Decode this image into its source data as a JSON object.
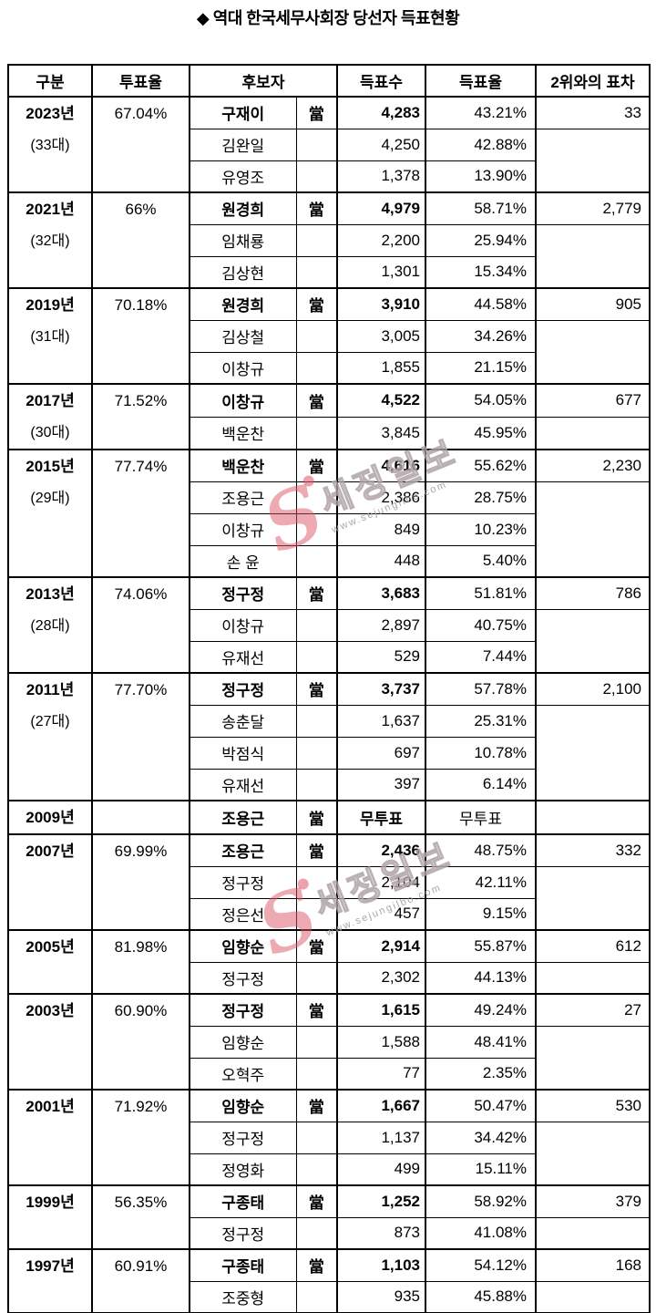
{
  "title": "◆ 역대 한국세무사회장 당선자 득표현황",
  "watermark": {
    "logo_letter": "S",
    "brand": "세정일보",
    "url": "www.sejungilbo.com",
    "accent_color": "#de5566"
  },
  "table": {
    "headers": [
      "구분",
      "투표율",
      "후보자",
      "득표수",
      "득표율",
      "2위와의 표차"
    ],
    "elected_mark": "當",
    "groups": [
      {
        "year": "2023년",
        "term": "(33대)",
        "turnout": "67.04%",
        "margin": "33",
        "candidates": [
          {
            "name": "구재이",
            "elected": true,
            "votes": "4,283",
            "pct": "43.21%"
          },
          {
            "name": "김완일",
            "elected": false,
            "votes": "4,250",
            "pct": "42.88%"
          },
          {
            "name": "유영조",
            "elected": false,
            "votes": "1,378",
            "pct": "13.90%"
          }
        ]
      },
      {
        "year": "2021년",
        "term": "(32대)",
        "turnout": "66%",
        "margin": "2,779",
        "candidates": [
          {
            "name": "원경희",
            "elected": true,
            "votes": "4,979",
            "pct": "58.71%"
          },
          {
            "name": "임채룡",
            "elected": false,
            "votes": "2,200",
            "pct": "25.94%"
          },
          {
            "name": "김상현",
            "elected": false,
            "votes": "1,301",
            "pct": "15.34%"
          }
        ]
      },
      {
        "year": "2019년",
        "term": "(31대)",
        "turnout": "70.18%",
        "margin": "905",
        "candidates": [
          {
            "name": "원경희",
            "elected": true,
            "votes": "3,910",
            "pct": "44.58%"
          },
          {
            "name": "김상철",
            "elected": false,
            "votes": "3,005",
            "pct": "34.26%"
          },
          {
            "name": "이창규",
            "elected": false,
            "votes": "1,855",
            "pct": "21.15%"
          }
        ]
      },
      {
        "year": "2017년",
        "term": "(30대)",
        "turnout": "71.52%",
        "margin": "677",
        "candidates": [
          {
            "name": "이창규",
            "elected": true,
            "votes": "4,522",
            "pct": "54.05%"
          },
          {
            "name": "백운찬",
            "elected": false,
            "votes": "3,845",
            "pct": "45.95%"
          }
        ]
      },
      {
        "year": "2015년",
        "term": "(29대)",
        "turnout": "77.74%",
        "margin": "2,230",
        "candidates": [
          {
            "name": "백운찬",
            "elected": true,
            "votes": "4,616",
            "pct": "55.62%"
          },
          {
            "name": "조용근",
            "elected": false,
            "votes": "2,386",
            "pct": "28.75%"
          },
          {
            "name": "이창규",
            "elected": false,
            "votes": "849",
            "pct": "10.23%"
          },
          {
            "name": "손 윤",
            "elected": false,
            "votes": "448",
            "pct": "5.40%"
          }
        ]
      },
      {
        "year": "2013년",
        "term": "(28대)",
        "turnout": "74.06%",
        "margin": "786",
        "candidates": [
          {
            "name": "정구정",
            "elected": true,
            "votes": "3,683",
            "pct": "51.81%"
          },
          {
            "name": "이창규",
            "elected": false,
            "votes": "2,897",
            "pct": "40.75%"
          },
          {
            "name": "유재선",
            "elected": false,
            "votes": "529",
            "pct": "7.44%"
          }
        ]
      },
      {
        "year": "2011년",
        "term": "(27대)",
        "turnout": "77.70%",
        "margin": "2,100",
        "candidates": [
          {
            "name": "정구정",
            "elected": true,
            "votes": "3,737",
            "pct": "57.78%"
          },
          {
            "name": "송춘달",
            "elected": false,
            "votes": "1,637",
            "pct": "25.31%"
          },
          {
            "name": "박점식",
            "elected": false,
            "votes": "697",
            "pct": "10.78%"
          },
          {
            "name": "유재선",
            "elected": false,
            "votes": "397",
            "pct": "6.14%"
          }
        ]
      },
      {
        "year": "2009년",
        "term": "",
        "turnout": "",
        "margin": "",
        "candidates": [
          {
            "name": "조용근",
            "elected": true,
            "votes": "무투표",
            "pct": "무투표",
            "uncontested": true
          }
        ]
      },
      {
        "year": "2007년",
        "term": "",
        "turnout": "69.99%",
        "margin": "332",
        "candidates": [
          {
            "name": "조용근",
            "elected": true,
            "votes": "2,436",
            "pct": "48.75%"
          },
          {
            "name": "정구정",
            "elected": false,
            "votes": "2,104",
            "pct": "42.11%"
          },
          {
            "name": "정은선",
            "elected": false,
            "votes": "457",
            "pct": "9.15%"
          }
        ]
      },
      {
        "year": "2005년",
        "term": "",
        "turnout": "81.98%",
        "margin": "612",
        "candidates": [
          {
            "name": "임향순",
            "elected": true,
            "votes": "2,914",
            "pct": "55.87%"
          },
          {
            "name": "정구정",
            "elected": false,
            "votes": "2,302",
            "pct": "44.13%"
          }
        ]
      },
      {
        "year": "2003년",
        "term": "",
        "turnout": "60.90%",
        "margin": "27",
        "candidates": [
          {
            "name": "정구정",
            "elected": true,
            "votes": "1,615",
            "pct": "49.24%"
          },
          {
            "name": "임향순",
            "elected": false,
            "votes": "1,588",
            "pct": "48.41%"
          },
          {
            "name": "오혁주",
            "elected": false,
            "votes": "77",
            "pct": "2.35%"
          }
        ]
      },
      {
        "year": "2001년",
        "term": "",
        "turnout": "71.92%",
        "margin": "530",
        "candidates": [
          {
            "name": "임향순",
            "elected": true,
            "votes": "1,667",
            "pct": "50.47%"
          },
          {
            "name": "정구정",
            "elected": false,
            "votes": "1,137",
            "pct": "34.42%"
          },
          {
            "name": "정영화",
            "elected": false,
            "votes": "499",
            "pct": "15.11%"
          }
        ]
      },
      {
        "year": "1999년",
        "term": "",
        "turnout": "56.35%",
        "margin": "379",
        "candidates": [
          {
            "name": "구종태",
            "elected": true,
            "votes": "1,252",
            "pct": "58.92%"
          },
          {
            "name": "정구정",
            "elected": false,
            "votes": "873",
            "pct": "41.08%"
          }
        ]
      },
      {
        "year": "1997년",
        "term": "",
        "turnout": "60.91%",
        "margin": "168",
        "candidates": [
          {
            "name": "구종태",
            "elected": true,
            "votes": "1,103",
            "pct": "54.12%"
          },
          {
            "name": "조중형",
            "elected": false,
            "votes": "935",
            "pct": "45.88%"
          }
        ]
      }
    ]
  }
}
